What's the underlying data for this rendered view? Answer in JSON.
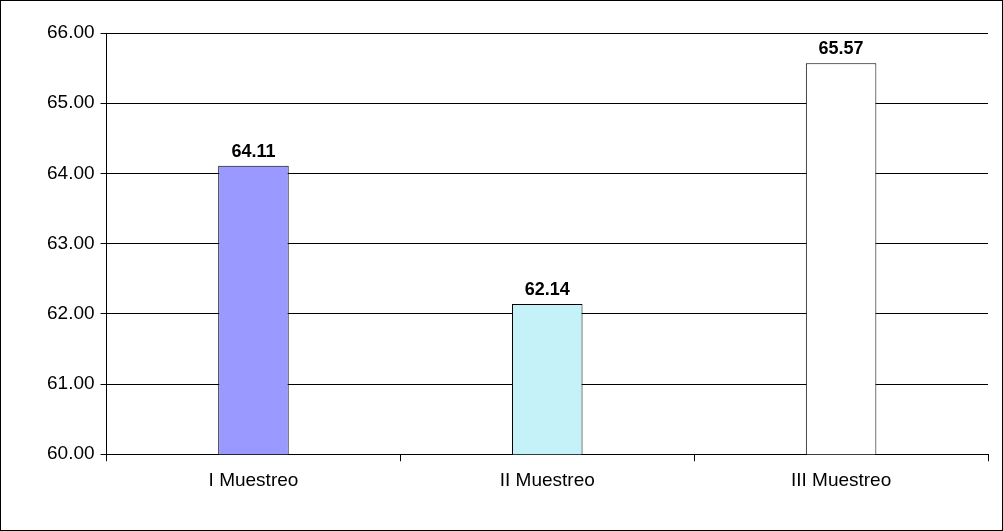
{
  "chart_data": {
    "type": "bar",
    "categories": [
      "I Muestreo",
      "II Muestreo",
      "III Muestreo"
    ],
    "values": [
      64.11,
      62.14,
      65.57
    ],
    "colors": [
      "#9999ff",
      "#c4f2f8",
      "#ffffff"
    ],
    "ylim": [
      60,
      66
    ],
    "yticks": [
      {
        "value": 60,
        "label": "60.00"
      },
      {
        "value": 61,
        "label": "61.00"
      },
      {
        "value": 62,
        "label": "62.00"
      },
      {
        "value": 63,
        "label": "63.00"
      },
      {
        "value": 64,
        "label": "64.00"
      },
      {
        "value": 65,
        "label": "65.00"
      },
      {
        "value": 66,
        "label": "66.00"
      }
    ],
    "grid": "y",
    "data_labels": true,
    "legend": false
  }
}
